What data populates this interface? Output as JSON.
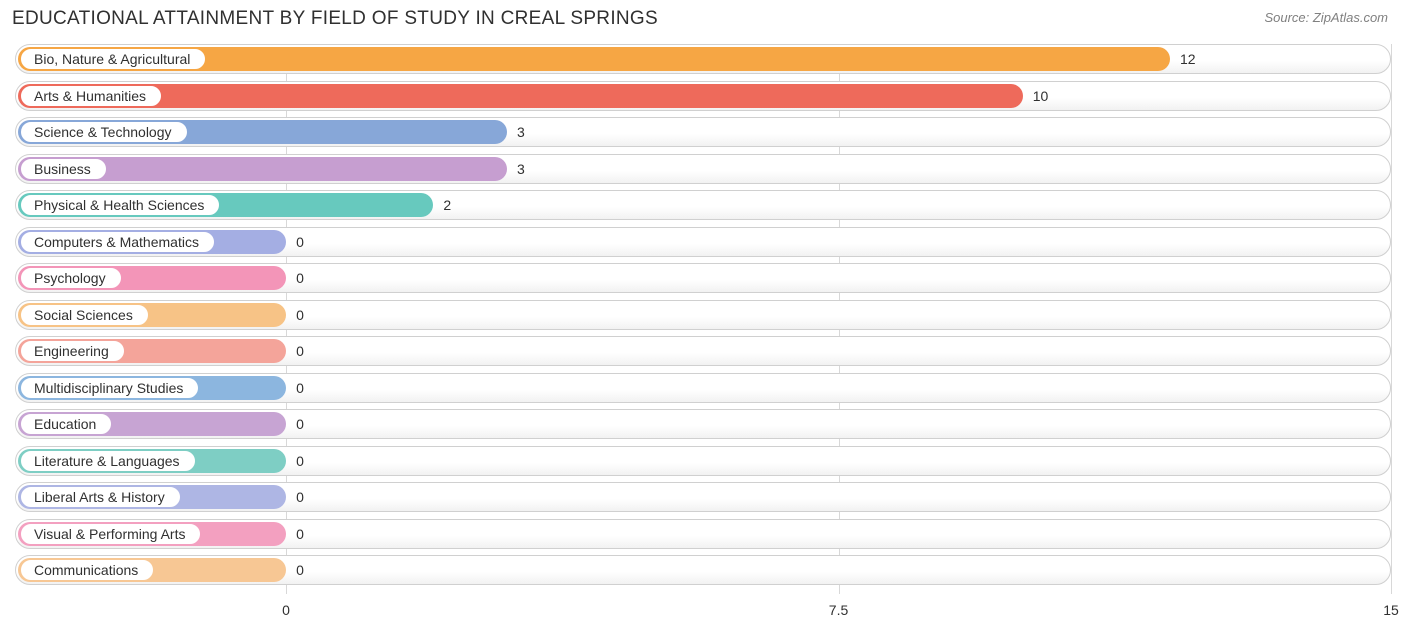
{
  "title": "EDUCATIONAL ATTAINMENT BY FIELD OF STUDY IN CREAL SPRINGS",
  "source": "Source: ZipAtlas.com",
  "chart": {
    "type": "bar-horizontal",
    "xlim": [
      0,
      15
    ],
    "xticks": [
      0,
      7.5,
      15
    ],
    "zero_offset_pct": 19.7,
    "background_color": "#ffffff",
    "track_border_color": "#d0d0d0",
    "grid_color": "#d8d8d8",
    "title_fontsize": 19,
    "label_fontsize": 14,
    "rows": [
      {
        "label": "Bio, Nature & Agricultural",
        "value": 12,
        "color": "#f6a644"
      },
      {
        "label": "Arts & Humanities",
        "value": 10,
        "color": "#ee6a5b"
      },
      {
        "label": "Science & Technology",
        "value": 3,
        "color": "#87a7d8"
      },
      {
        "label": "Business",
        "value": 3,
        "color": "#c69ed0"
      },
      {
        "label": "Physical & Health Sciences",
        "value": 2,
        "color": "#67c9be"
      },
      {
        "label": "Computers & Mathematics",
        "value": 0,
        "color": "#a4aee3"
      },
      {
        "label": "Psychology",
        "value": 0,
        "color": "#f395b8"
      },
      {
        "label": "Social Sciences",
        "value": 0,
        "color": "#f7c386"
      },
      {
        "label": "Engineering",
        "value": 0,
        "color": "#f4a49a"
      },
      {
        "label": "Multidisciplinary Studies",
        "value": 0,
        "color": "#8cb6df"
      },
      {
        "label": "Education",
        "value": 0,
        "color": "#c7a4d3"
      },
      {
        "label": "Literature & Languages",
        "value": 0,
        "color": "#7ecec4"
      },
      {
        "label": "Liberal Arts & History",
        "value": 0,
        "color": "#aeb6e4"
      },
      {
        "label": "Visual & Performing Arts",
        "value": 0,
        "color": "#f3a0c0"
      },
      {
        "label": "Communications",
        "value": 0,
        "color": "#f7c794"
      }
    ]
  }
}
